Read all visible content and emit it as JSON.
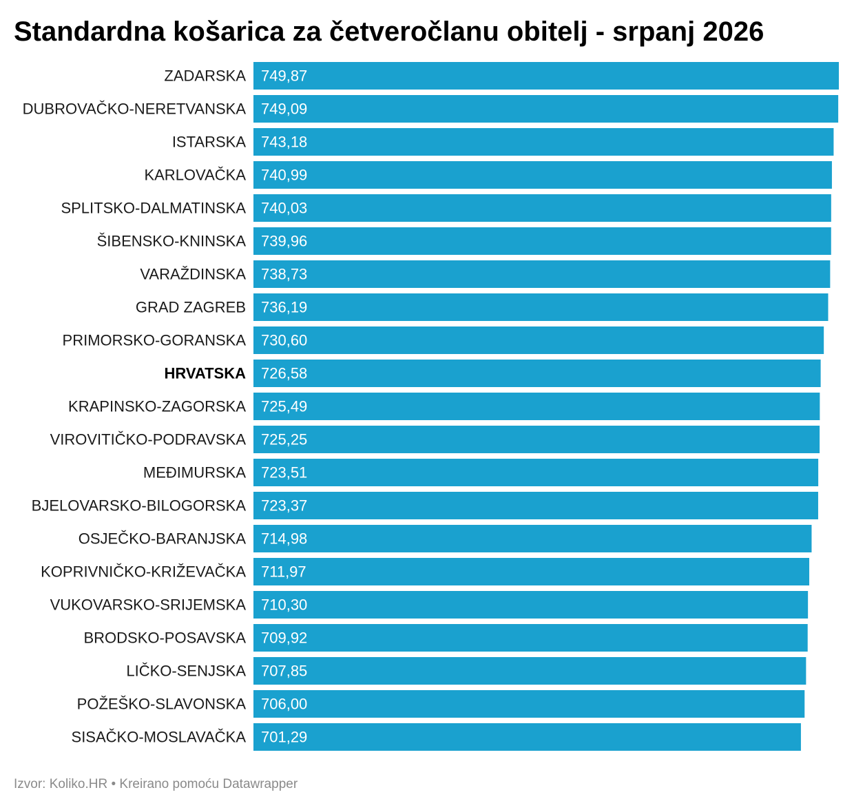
{
  "chart_data": {
    "type": "bar",
    "orientation": "horizontal",
    "title": "Standardna košarica za četveročlanu obitelj - srpanj 2026",
    "categories": [
      "ZADARSKA",
      "DUBROVAČKO-NERETVANSKA",
      "ISTARSKA",
      "KARLOVAČKA",
      "SPLITSKO-DALMATINSKA",
      "ŠIBENSKO-KNINSKA",
      "VARAŽDINSKA",
      "GRAD ZAGREB",
      "PRIMORSKO-GORANSKA",
      "HRVATSKA",
      "KRAPINSKO-ZAGORSKA",
      "VIROVITIČKO-PODRAVSKA",
      "MEĐIMURSKA",
      "BJELOVARSKO-BILOGORSKA",
      "OSJEČKO-BARANJSKA",
      "KOPRIVNIČKO-KRIŽEVAČKA",
      "VUKOVARSKO-SRIJEMSKA",
      "BRODSKO-POSAVSKA",
      "LIČKO-SENJSKA",
      "POŽEŠKO-SLAVONSKA",
      "SISAČKO-MOSLAVAČKA"
    ],
    "values": [
      749.87,
      749.09,
      743.18,
      740.99,
      740.03,
      739.96,
      738.73,
      736.19,
      730.6,
      726.58,
      725.49,
      725.25,
      723.51,
      723.37,
      714.98,
      711.97,
      710.3,
      709.92,
      707.85,
      706.0,
      701.29
    ],
    "value_labels": [
      "749,87",
      "749,09",
      "743,18",
      "740,99",
      "740,03",
      "739,96",
      "738,73",
      "736,19",
      "730,60",
      "726,58",
      "725,49",
      "725,25",
      "723,51",
      "723,37",
      "714,98",
      "711,97",
      "710,30",
      "709,92",
      "707,85",
      "706,00",
      "701,29"
    ],
    "highlighted_category": "HRVATSKA",
    "xlim": [
      0,
      749.87
    ],
    "bar_color": "#1aa1cf",
    "grid": false,
    "legend": "none"
  },
  "footer": {
    "text": "Izvor: Koliko.HR • Kreirano pomoću Datawrapper"
  }
}
